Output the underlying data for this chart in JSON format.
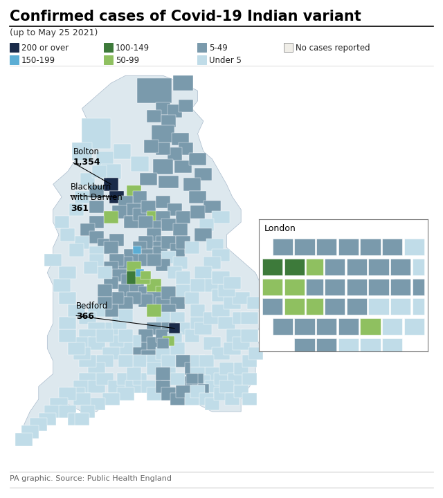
{
  "title": "Confirmed cases of Covid-19 Indian variant",
  "subtitle": "(up to May 25 2021)",
  "source": "PA graphic. Source: Public Health England",
  "colors": {
    "c200": "#1a2b4a",
    "c150": "#5badd4",
    "c100": "#3d7a3a",
    "c050": "#8fc060",
    "c005": "#7a9aac",
    "cu05": "#c0dce8",
    "c000": "#f0eee8"
  },
  "legend": [
    {
      "label": "200 or over",
      "color": "#1a2b4a",
      "row": 0,
      "col": 0
    },
    {
      "label": "150-199",
      "color": "#5badd4",
      "row": 1,
      "col": 0
    },
    {
      "label": "100-149",
      "color": "#3d7a3a",
      "row": 0,
      "col": 1
    },
    {
      "label": "50-99",
      "color": "#8fc060",
      "row": 1,
      "col": 1
    },
    {
      "label": "5-49",
      "color": "#7a9aac",
      "row": 0,
      "col": 2
    },
    {
      "label": "Under 5",
      "color": "#c0dce8",
      "row": 1,
      "col": 2
    },
    {
      "label": "No cases reported",
      "color": "#f0eee8",
      "row": 0,
      "col": 3
    }
  ],
  "title_fontsize": 15,
  "subtitle_fontsize": 9,
  "legend_fontsize": 8.5,
  "source_fontsize": 8
}
